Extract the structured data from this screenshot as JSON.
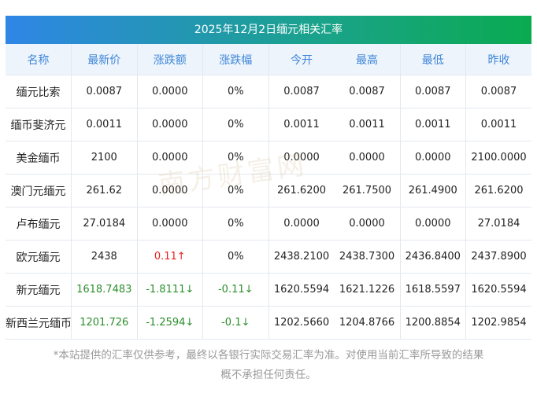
{
  "title": "2025年12月2日缅元相关汇率",
  "headers": [
    "名称",
    "最新价",
    "涨跌额",
    "涨跌幅",
    "今开",
    "最高",
    "最低",
    "昨收"
  ],
  "rows": [
    [
      "缅元比索",
      "0.0087",
      "0.0000",
      "0%",
      "0.0087",
      "0.0087",
      "0.0087",
      "0.0087"
    ],
    [
      "缅币斐济元",
      "0.0011",
      "0.0000",
      "0%",
      "0.0011",
      "0.0011",
      "0.0011",
      "0.0011"
    ],
    [
      "美金缅币",
      "2100",
      "0.0000",
      "0%",
      "0.0000",
      "0.0000",
      "0.0000",
      "2100.0000"
    ],
    [
      "澳门元缅元",
      "261.62",
      "0.0000",
      "0%",
      "261.6200",
      "261.7500",
      "261.4900",
      "261.6200"
    ],
    [
      "卢布缅元",
      "27.0184",
      "0.0000",
      "0%",
      "0.0000",
      "0.0000",
      "0.0000",
      "27.0184"
    ],
    [
      "欧元缅元",
      "2438",
      "0.11↑",
      "0%",
      "2438.2100",
      "2438.7300",
      "2436.8400",
      "2437.8900"
    ],
    [
      "新元缅元",
      "1618.7483",
      "-1.8111↓",
      "-0.11↓",
      "1620.5594",
      "1621.1226",
      "1618.5597",
      "1620.5594"
    ],
    [
      "新西兰元缅币",
      "1201.726",
      "-1.2594↓",
      "-0.1↓",
      "1202.5660",
      "1204.8766",
      "1200.8854",
      "1202.9854"
    ]
  ],
  "row_trend": [
    "",
    "",
    "",
    "",
    "",
    "up",
    "down",
    "down"
  ],
  "watermark": "南方财富网 southmoney.com",
  "note_line1": "*本站提供的汇率仅供参考，最终以各银行实际交易汇率为准。对使用当前汇率所导致的结果",
  "note_line2": "概不承担任何责任。",
  "colors": {
    "up": "#e42323",
    "down": "#2a8f2a",
    "header_text": "#3d86d8"
  }
}
